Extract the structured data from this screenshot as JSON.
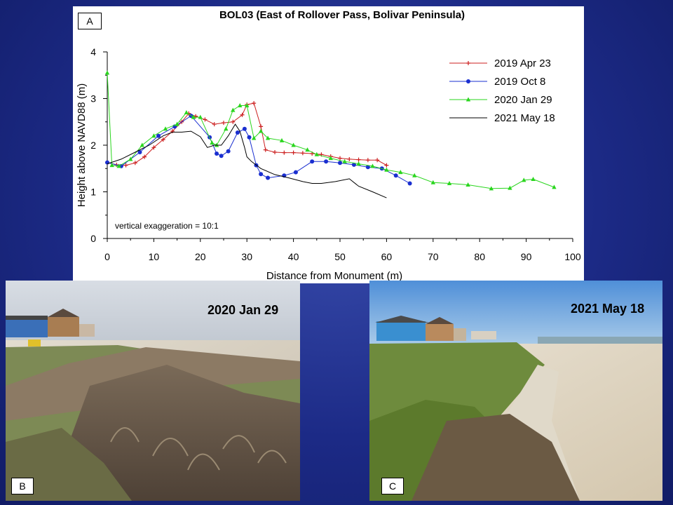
{
  "panels": {
    "a_letter": "A",
    "b_letter": "B",
    "c_letter": "C",
    "b_date": "2020 Jan 29",
    "c_date": "2021 May 18"
  },
  "chart_data": {
    "type": "line",
    "title": "BOL03 (East of Rollover Pass, Bolivar Peninsula)",
    "xlabel": "Distance from Monument (m)",
    "ylabel": "Height above NAVD88 (m)",
    "xlim": [
      0,
      100
    ],
    "ylim": [
      0,
      4
    ],
    "xticks": [
      "0",
      "10",
      "20",
      "30",
      "40",
      "50",
      "60",
      "70",
      "80",
      "90",
      "100"
    ],
    "yticks": [
      "0",
      "1",
      "2",
      "3",
      "4"
    ],
    "annotation": "vertical exaggeration = 10:1",
    "grid": false,
    "legend_position": "top-right",
    "series": [
      {
        "name": "2019 Apr 23",
        "color": "#cc1f1f",
        "marker": "plus",
        "x": [
          0,
          2,
          4,
          6,
          8,
          10,
          12,
          14,
          16,
          17.5,
          19,
          21,
          23,
          25,
          27,
          29,
          30,
          31.5,
          33,
          34,
          36,
          38,
          40,
          42,
          44,
          46,
          48,
          50,
          52,
          54,
          56,
          58,
          60
        ],
        "y": [
          1.63,
          1.58,
          1.57,
          1.62,
          1.75,
          1.95,
          2.12,
          2.3,
          2.5,
          2.68,
          2.62,
          2.55,
          2.45,
          2.48,
          2.5,
          2.65,
          2.87,
          2.9,
          2.4,
          1.9,
          1.85,
          1.84,
          1.84,
          1.83,
          1.82,
          1.8,
          1.76,
          1.72,
          1.7,
          1.69,
          1.68,
          1.68,
          1.57
        ]
      },
      {
        "name": "2019 Oct 8",
        "color": "#1a2fd0",
        "marker": "circle",
        "x": [
          0,
          3,
          7,
          11,
          14.5,
          18,
          22,
          23.5,
          24.5,
          26,
          28,
          29.5,
          30.5,
          32,
          33,
          34.5,
          38,
          40.5,
          44,
          47,
          50,
          53,
          56,
          59,
          62,
          65
        ],
        "y": [
          1.63,
          1.55,
          1.85,
          2.2,
          2.4,
          2.63,
          2.17,
          1.82,
          1.77,
          1.87,
          2.27,
          2.35,
          2.17,
          1.57,
          1.38,
          1.3,
          1.35,
          1.42,
          1.65,
          1.65,
          1.62,
          1.58,
          1.53,
          1.5,
          1.35,
          1.18
        ]
      },
      {
        "name": "2020 Jan 29",
        "color": "#2ad61e",
        "marker": "triangle",
        "x": [
          0,
          1,
          2.5,
          5,
          7.5,
          10,
          12.5,
          15,
          17,
          18.5,
          20,
          22.5,
          23.5,
          25.5,
          27,
          28.5,
          30,
          31.5,
          33,
          34.5,
          37.5,
          40,
          43,
          45,
          48,
          51,
          54,
          57,
          60,
          63,
          66,
          70,
          73.5,
          77.5,
          82.5,
          86.5,
          89.5,
          91.5,
          96
        ],
        "y": [
          3.55,
          1.57,
          1.55,
          1.7,
          2.0,
          2.2,
          2.35,
          2.45,
          2.7,
          2.6,
          2.6,
          2.05,
          2.0,
          2.35,
          2.75,
          2.85,
          2.85,
          2.15,
          2.3,
          2.15,
          2.1,
          2.0,
          1.9,
          1.8,
          1.72,
          1.65,
          1.6,
          1.55,
          1.47,
          1.42,
          1.35,
          1.2,
          1.18,
          1.15,
          1.07,
          1.08,
          1.25,
          1.27,
          1.1
        ]
      },
      {
        "name": "2021 May 18",
        "color": "#000000",
        "marker": "none",
        "x": [
          0,
          3,
          6,
          9,
          12,
          14,
          16,
          18,
          20,
          21.5,
          23,
          24.5,
          26,
          27.5,
          28.5,
          29.5,
          30,
          31,
          33,
          36,
          39,
          42,
          44,
          46,
          49,
          52,
          54,
          57,
          60
        ],
        "y": [
          1.6,
          1.7,
          1.85,
          2.0,
          2.2,
          2.28,
          2.28,
          2.3,
          2.18,
          1.95,
          2.0,
          2.0,
          2.2,
          2.45,
          2.3,
          1.95,
          1.75,
          1.65,
          1.5,
          1.37,
          1.3,
          1.22,
          1.18,
          1.18,
          1.22,
          1.28,
          1.12,
          1.0,
          0.87
        ]
      }
    ]
  }
}
